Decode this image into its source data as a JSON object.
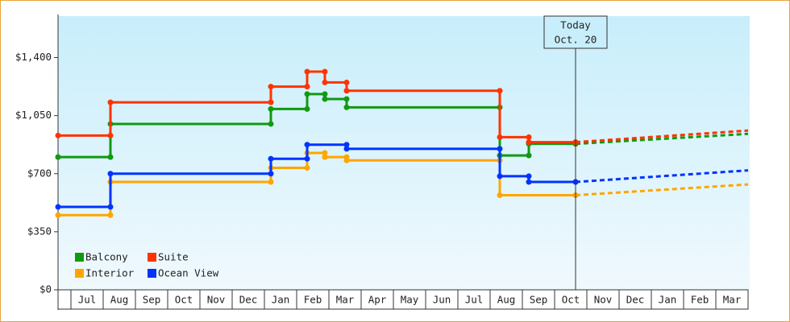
{
  "chart_data": {
    "type": "step-line",
    "categories": [
      "Jul",
      "Aug",
      "Sep",
      "Oct",
      "Nov",
      "Dec",
      "Jan",
      "Feb",
      "Mar",
      "Apr",
      "May",
      "Jun",
      "Jul",
      "Aug",
      "Sep",
      "Oct",
      "Nov",
      "Dec",
      "Jan",
      "Feb",
      "Mar"
    ],
    "xlim": [
      -0.4,
      21
    ],
    "ylim": [
      0,
      1650
    ],
    "yticks": [
      {
        "value": 0,
        "label": "$0"
      },
      {
        "value": 350,
        "label": "$350"
      },
      {
        "value": 700,
        "label": "$700"
      },
      {
        "value": 1050,
        "label": "$1,050"
      },
      {
        "value": 1400,
        "label": "$1,400"
      }
    ],
    "annotation": {
      "lines": [
        "Today",
        "Oct. 20"
      ],
      "x": 15.65
    },
    "forecast_x": [
      15.65,
      21
    ],
    "series": [
      {
        "name": "Balcony",
        "color": "#119911",
        "x": [
          -0.4,
          1.225,
          6.2,
          7.325,
          7.875,
          8.55,
          13.3,
          14.2,
          15.65
        ],
        "values": [
          800,
          1000,
          1090,
          1180,
          1150,
          1100,
          810,
          880,
          880
        ],
        "forecast": [
          880,
          940
        ]
      },
      {
        "name": "Suite",
        "color": "#ff3300",
        "x": [
          -0.4,
          1.225,
          6.2,
          7.325,
          7.875,
          8.55,
          13.3,
          14.2,
          15.65
        ],
        "values": [
          930,
          1130,
          1225,
          1315,
          1250,
          1200,
          920,
          890,
          890
        ],
        "forecast": [
          890,
          960
        ]
      },
      {
        "name": "Interior",
        "color": "#ffa500",
        "x": [
          -0.4,
          1.225,
          6.2,
          7.325,
          7.875,
          8.55,
          13.3,
          15.65
        ],
        "values": [
          450,
          650,
          735,
          825,
          800,
          780,
          570,
          570
        ],
        "forecast": [
          570,
          635
        ]
      },
      {
        "name": "Ocean View",
        "color": "#0033ff",
        "x": [
          -0.4,
          1.225,
          6.2,
          7.325,
          8.55,
          13.3,
          14.2,
          15.65
        ],
        "values": [
          500,
          700,
          790,
          875,
          850,
          685,
          650,
          650
        ],
        "forecast": [
          650,
          720
        ]
      }
    ],
    "legend": "lower left"
  }
}
